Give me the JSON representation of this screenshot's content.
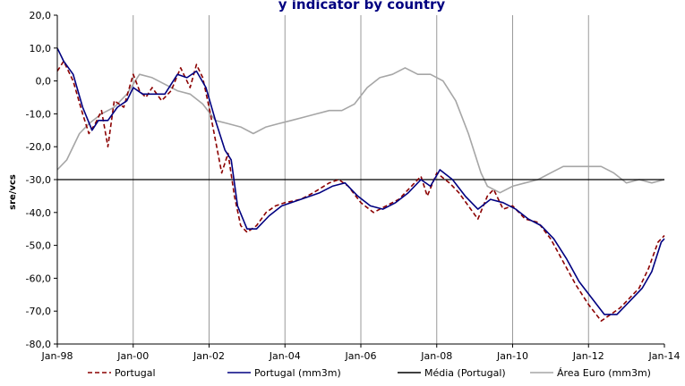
{
  "chart_data": {
    "type": "line",
    "title": "y indicator by country",
    "xlabel": "",
    "ylabel": "sre/vcs",
    "ylim": [
      -80,
      20
    ],
    "yticks": [
      -80,
      -70,
      -60,
      -50,
      -40,
      -30,
      -20,
      -10,
      0,
      10,
      20
    ],
    "ytick_labels": [
      "-80,0",
      "-70,0",
      "-60,0",
      "-50,0",
      "-40,0",
      "-30,0",
      "-20,0",
      "-10,0",
      "0,0",
      "10,0",
      "20,0"
    ],
    "xlim": [
      "1998-01",
      "2014-01"
    ],
    "xtick_labels": [
      "Jan-98",
      "Jan-00",
      "Jan-02",
      "Jan-04",
      "Jan-06",
      "Jan-08",
      "Jan-10",
      "Jan-12",
      "Jan-14"
    ],
    "grid": "vertical",
    "legend": "bottom",
    "series": [
      {
        "name": "Portugal",
        "color": "#8b0000",
        "style": "dashed",
        "points": [
          [
            "1998-01",
            3
          ],
          [
            "1998-03",
            6
          ],
          [
            "1998-06",
            0
          ],
          [
            "1998-09",
            -10
          ],
          [
            "1998-11",
            -16
          ],
          [
            "1999-01",
            -13
          ],
          [
            "1999-03",
            -9
          ],
          [
            "1999-05",
            -20
          ],
          [
            "1999-07",
            -6
          ],
          [
            "1999-10",
            -8
          ],
          [
            "2000-01",
            2
          ],
          [
            "2000-03",
            -3
          ],
          [
            "2000-05",
            -5
          ],
          [
            "2000-07",
            -2
          ],
          [
            "2000-10",
            -6
          ],
          [
            "2001-01",
            -3
          ],
          [
            "2001-04",
            4
          ],
          [
            "2001-07",
            -2
          ],
          [
            "2001-09",
            5
          ],
          [
            "2001-11",
            1
          ],
          [
            "2002-01",
            -8
          ],
          [
            "2002-03",
            -18
          ],
          [
            "2002-05",
            -28
          ],
          [
            "2002-07",
            -22
          ],
          [
            "2002-09",
            -35
          ],
          [
            "2002-11",
            -44
          ],
          [
            "2003-01",
            -46
          ],
          [
            "2003-04",
            -44
          ],
          [
            "2003-07",
            -40
          ],
          [
            "2003-10",
            -38
          ],
          [
            "2004-01",
            -37
          ],
          [
            "2004-06",
            -36
          ],
          [
            "2004-10",
            -34
          ],
          [
            "2005-03",
            -31
          ],
          [
            "2005-06",
            -30
          ],
          [
            "2005-09",
            -32
          ],
          [
            "2006-01",
            -37
          ],
          [
            "2006-05",
            -40
          ],
          [
            "2006-09",
            -38
          ],
          [
            "2007-01",
            -36
          ],
          [
            "2007-05",
            -32
          ],
          [
            "2007-08",
            -29
          ],
          [
            "2007-10",
            -35
          ],
          [
            "2008-01",
            -28
          ],
          [
            "2008-05",
            -31
          ],
          [
            "2008-08",
            -34
          ],
          [
            "2008-11",
            -38
          ],
          [
            "2009-02",
            -42
          ],
          [
            "2009-05",
            -35
          ],
          [
            "2009-07",
            -33
          ],
          [
            "2009-10",
            -39
          ],
          [
            "2010-01",
            -38
          ],
          [
            "2010-05",
            -42
          ],
          [
            "2010-09",
            -43
          ],
          [
            "2011-01",
            -48
          ],
          [
            "2011-05",
            -55
          ],
          [
            "2011-09",
            -62
          ],
          [
            "2012-01",
            -68
          ],
          [
            "2012-05",
            -73
          ],
          [
            "2012-08",
            -71
          ],
          [
            "2012-11",
            -69
          ],
          [
            "2013-02",
            -66
          ],
          [
            "2013-05",
            -63
          ],
          [
            "2013-08",
            -57
          ],
          [
            "2013-11",
            -49
          ],
          [
            "2014-01",
            -47
          ]
        ]
      },
      {
        "name": "Portugal (mm3m)",
        "color": "#000080",
        "style": "solid",
        "points": [
          [
            "1998-01",
            10
          ],
          [
            "1998-03",
            6
          ],
          [
            "1998-06",
            2
          ],
          [
            "1998-09",
            -8
          ],
          [
            "1998-12",
            -15
          ],
          [
            "1999-02",
            -12
          ],
          [
            "1999-05",
            -12
          ],
          [
            "1999-08",
            -8
          ],
          [
            "1999-11",
            -6
          ],
          [
            "2000-01",
            -2
          ],
          [
            "2000-04",
            -4
          ],
          [
            "2000-08",
            -4
          ],
          [
            "2000-11",
            -4
          ],
          [
            "2001-03",
            2
          ],
          [
            "2001-06",
            1
          ],
          [
            "2001-09",
            3
          ],
          [
            "2001-12",
            -2
          ],
          [
            "2002-03",
            -12
          ],
          [
            "2002-06",
            -21
          ],
          [
            "2002-08",
            -24
          ],
          [
            "2002-10",
            -38
          ],
          [
            "2003-01",
            -45
          ],
          [
            "2003-04",
            -45
          ],
          [
            "2003-08",
            -41
          ],
          [
            "2003-12",
            -38
          ],
          [
            "2004-06",
            -36
          ],
          [
            "2004-12",
            -34
          ],
          [
            "2005-04",
            -32
          ],
          [
            "2005-08",
            -31
          ],
          [
            "2005-12",
            -35
          ],
          [
            "2006-04",
            -38
          ],
          [
            "2006-08",
            -39
          ],
          [
            "2006-12",
            -37
          ],
          [
            "2007-04",
            -34
          ],
          [
            "2007-08",
            -30
          ],
          [
            "2007-11",
            -32
          ],
          [
            "2008-02",
            -27
          ],
          [
            "2008-06",
            -30
          ],
          [
            "2008-10",
            -35
          ],
          [
            "2009-02",
            -39
          ],
          [
            "2009-06",
            -36
          ],
          [
            "2009-10",
            -37
          ],
          [
            "2010-02",
            -39
          ],
          [
            "2010-06",
            -42
          ],
          [
            "2010-10",
            -44
          ],
          [
            "2011-02",
            -48
          ],
          [
            "2011-06",
            -54
          ],
          [
            "2011-10",
            -61
          ],
          [
            "2012-02",
            -66
          ],
          [
            "2012-06",
            -71
          ],
          [
            "2012-10",
            -71
          ],
          [
            "2013-02",
            -67
          ],
          [
            "2013-06",
            -63
          ],
          [
            "2013-09",
            -58
          ],
          [
            "2013-12",
            -49
          ],
          [
            "2014-01",
            -48
          ]
        ]
      },
      {
        "name": "Média (Portugal)",
        "color": "#000000",
        "style": "solid",
        "points": [
          [
            "1998-01",
            -30
          ],
          [
            "2014-01",
            -30
          ]
        ]
      },
      {
        "name": "Área Euro (mm3m)",
        "color": "#a6a6a6",
        "style": "solid",
        "points": [
          [
            "1998-01",
            -27
          ],
          [
            "1998-04",
            -24
          ],
          [
            "1998-08",
            -16
          ],
          [
            "1998-11",
            -13
          ],
          [
            "1999-03",
            -10
          ],
          [
            "1999-07",
            -8
          ],
          [
            "1999-11",
            -4
          ],
          [
            "2000-03",
            2
          ],
          [
            "2000-07",
            1
          ],
          [
            "2000-11",
            -1
          ],
          [
            "2001-03",
            -3
          ],
          [
            "2001-07",
            -4
          ],
          [
            "2001-11",
            -7
          ],
          [
            "2002-03",
            -12
          ],
          [
            "2002-07",
            -13
          ],
          [
            "2002-11",
            -14
          ],
          [
            "2003-03",
            -16
          ],
          [
            "2003-07",
            -14
          ],
          [
            "2003-11",
            -13
          ],
          [
            "2004-03",
            -12
          ],
          [
            "2004-07",
            -11
          ],
          [
            "2004-11",
            -10
          ],
          [
            "2005-03",
            -9
          ],
          [
            "2005-07",
            -9
          ],
          [
            "2005-11",
            -7
          ],
          [
            "2006-03",
            -2
          ],
          [
            "2006-07",
            1
          ],
          [
            "2006-11",
            2
          ],
          [
            "2007-03",
            4
          ],
          [
            "2007-07",
            2
          ],
          [
            "2007-11",
            2
          ],
          [
            "2008-03",
            0
          ],
          [
            "2008-07",
            -6
          ],
          [
            "2008-11",
            -16
          ],
          [
            "2009-03",
            -28
          ],
          [
            "2009-05",
            -32
          ],
          [
            "2009-09",
            -34
          ],
          [
            "2010-01",
            -32
          ],
          [
            "2010-05",
            -31
          ],
          [
            "2010-09",
            -30
          ],
          [
            "2011-01",
            -28
          ],
          [
            "2011-05",
            -26
          ],
          [
            "2011-09",
            -26
          ],
          [
            "2012-01",
            -26
          ],
          [
            "2012-05",
            -26
          ],
          [
            "2012-09",
            -28
          ],
          [
            "2013-01",
            -31
          ],
          [
            "2013-05",
            -30
          ],
          [
            "2013-09",
            -31
          ],
          [
            "2014-01",
            -30
          ]
        ]
      }
    ]
  }
}
